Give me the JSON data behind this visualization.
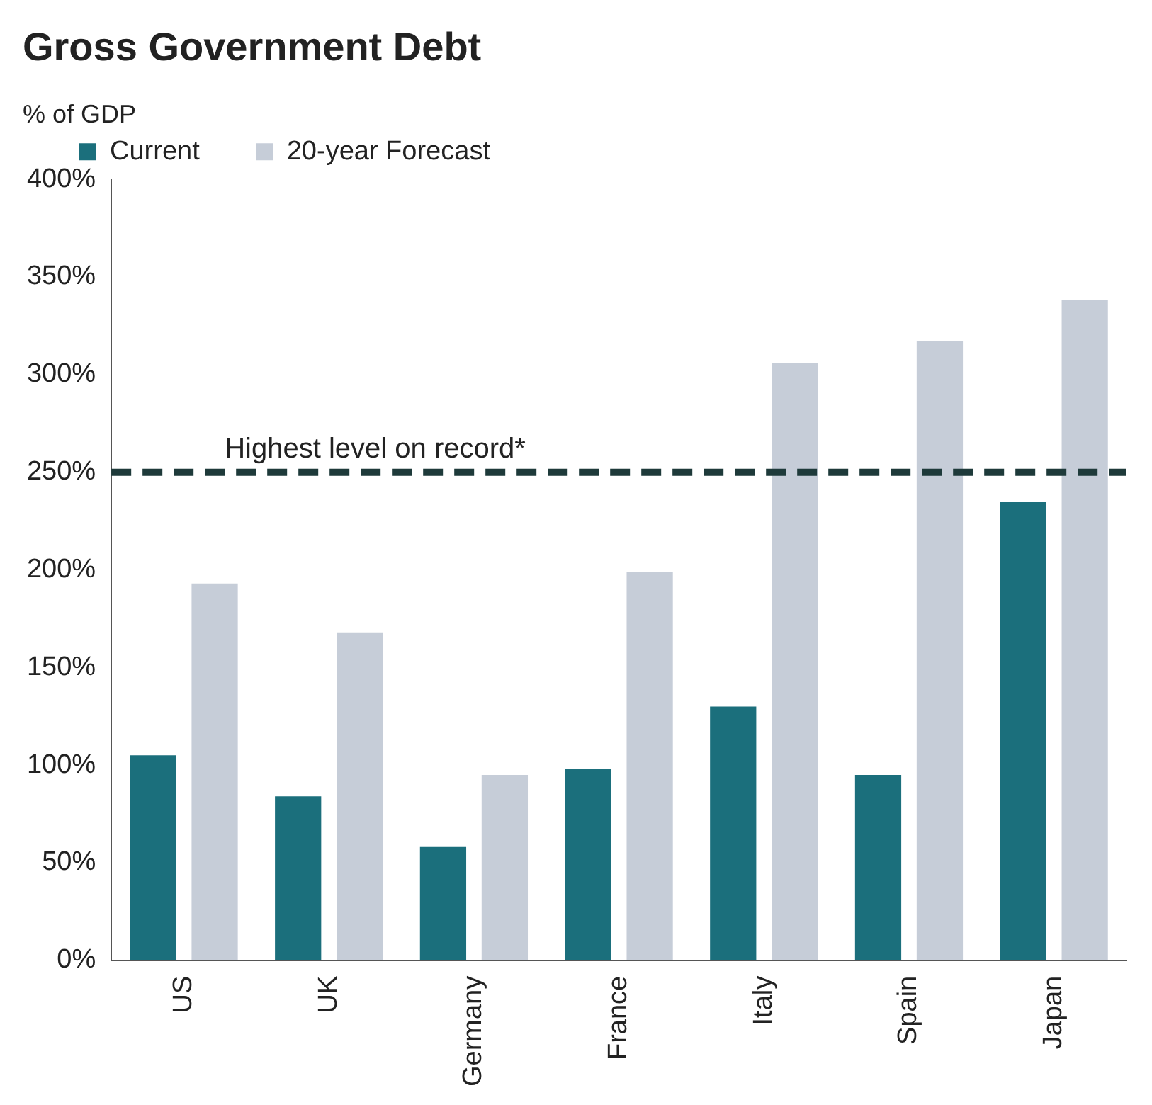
{
  "chart_data": {
    "type": "bar",
    "title": "Gross Government Debt",
    "ylabel": "% of GDP",
    "categories": [
      "US",
      "UK",
      "Germany",
      "France",
      "Italy",
      "Spain",
      "Japan"
    ],
    "series": [
      {
        "name": "Current",
        "color": "#1b6f7c",
        "values": [
          105,
          84,
          58,
          98,
          130,
          95,
          235
        ]
      },
      {
        "name": "20-year Forecast",
        "color": "#c6cdd8",
        "values": [
          193,
          168,
          95,
          199,
          306,
          317,
          338
        ]
      }
    ],
    "ylim": [
      0,
      400
    ],
    "yticks": [
      {
        "value": 0,
        "label": "0%"
      },
      {
        "value": 50,
        "label": "50%"
      },
      {
        "value": 100,
        "label": "100%"
      },
      {
        "value": 150,
        "label": "150%"
      },
      {
        "value": 200,
        "label": "200%"
      },
      {
        "value": 250,
        "label": "250%"
      },
      {
        "value": 300,
        "label": "300%"
      },
      {
        "value": 350,
        "label": "350%"
      },
      {
        "value": 400,
        "label": "400%"
      }
    ],
    "ref_lines": [
      {
        "axis": "y",
        "value": 250,
        "label": "Highest level on record*",
        "color": "#1e3a3a",
        "line_style": "dashed"
      }
    ],
    "grid": false,
    "legend": "top left"
  }
}
